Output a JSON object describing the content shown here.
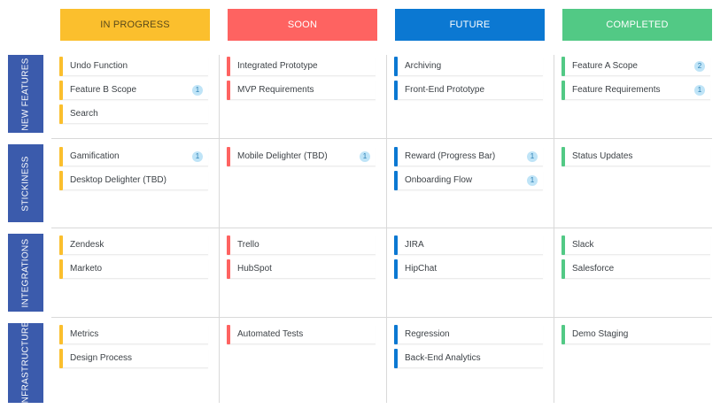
{
  "columns": [
    {
      "label": "IN PROGRESS",
      "bg": "#fbbf2d",
      "fg": "#5a4a1a"
    },
    {
      "label": "SOON",
      "bg": "#fe6361",
      "fg": "#ffffff"
    },
    {
      "label": "FUTURE",
      "bg": "#0b78d2",
      "fg": "#ffffff"
    },
    {
      "label": "COMPLETED",
      "bg": "#52c985",
      "fg": "#ffffff"
    }
  ],
  "rows": [
    {
      "label": "NEW FEATURES"
    },
    {
      "label": "STICKINESS"
    },
    {
      "label": "INTEGRATIONS"
    },
    {
      "label": "INFRASTRUCTURE"
    }
  ],
  "cells": {
    "r0": {
      "c0": [
        {
          "title": "Undo Function"
        },
        {
          "title": "Feature B Scope",
          "badge": "1"
        },
        {
          "title": "Search"
        }
      ],
      "c1": [
        {
          "title": "Integrated Prototype"
        },
        {
          "title": "MVP Requirements"
        }
      ],
      "c2": [
        {
          "title": "Archiving"
        },
        {
          "title": "Front-End Prototype"
        }
      ],
      "c3": [
        {
          "title": "Feature A Scope",
          "badge": "2"
        },
        {
          "title": "Feature Requirements",
          "badge": "1"
        }
      ]
    },
    "r1": {
      "c0": [
        {
          "title": "Gamification",
          "badge": "1"
        },
        {
          "title": "Desktop Delighter (TBD)"
        }
      ],
      "c1": [
        {
          "title": "Mobile Delighter (TBD)",
          "badge": "1"
        }
      ],
      "c2": [
        {
          "title": "Reward (Progress Bar)",
          "badge": "1"
        },
        {
          "title": "Onboarding Flow",
          "badge": "1"
        }
      ],
      "c3": [
        {
          "title": "Status Updates"
        }
      ]
    },
    "r2": {
      "c0": [
        {
          "title": "Zendesk"
        },
        {
          "title": "Marketo"
        }
      ],
      "c1": [
        {
          "title": "Trello"
        },
        {
          "title": "HubSpot"
        }
      ],
      "c2": [
        {
          "title": "JIRA"
        },
        {
          "title": "HipChat"
        }
      ],
      "c3": [
        {
          "title": "Slack"
        },
        {
          "title": "Salesforce"
        }
      ]
    },
    "r3": {
      "c0": [
        {
          "title": "Metrics"
        },
        {
          "title": "Design Process"
        }
      ],
      "c1": [
        {
          "title": "Automated Tests"
        }
      ],
      "c2": [
        {
          "title": "Regression"
        },
        {
          "title": "Back-End Analytics"
        }
      ],
      "c3": [
        {
          "title": "Demo Staging"
        }
      ]
    }
  }
}
